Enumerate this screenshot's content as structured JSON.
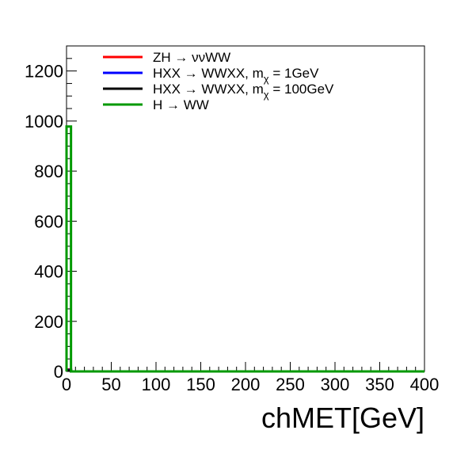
{
  "chart_data": {
    "type": "line",
    "xlabel": "chMET[GeV]",
    "ylabel": "",
    "xlim": [
      0,
      400
    ],
    "ylim": [
      0,
      1300
    ],
    "x_ticks": [
      0,
      50,
      100,
      150,
      200,
      250,
      300,
      350,
      400
    ],
    "y_ticks": [
      0,
      200,
      400,
      600,
      800,
      1000,
      1200
    ],
    "grid": false,
    "legend_position": "top-left",
    "bin_edges": [
      0,
      5,
      400
    ],
    "series": [
      {
        "name": "ZH → ννWW",
        "color": "#ff0000",
        "values": [
          8,
          0
        ]
      },
      {
        "name": "HXX → WWXX, m",
        "sub": "χ",
        "suffix": " = 1GeV",
        "color": "#0000ff",
        "values": [
          6,
          0
        ]
      },
      {
        "name": "HXX → WWXX, m",
        "sub": "χ",
        "suffix": " = 100GeV",
        "color": "#000000",
        "values": [
          4,
          0
        ]
      },
      {
        "name": "H → WW",
        "color": "#009900",
        "values": [
          978,
          0
        ]
      }
    ]
  }
}
